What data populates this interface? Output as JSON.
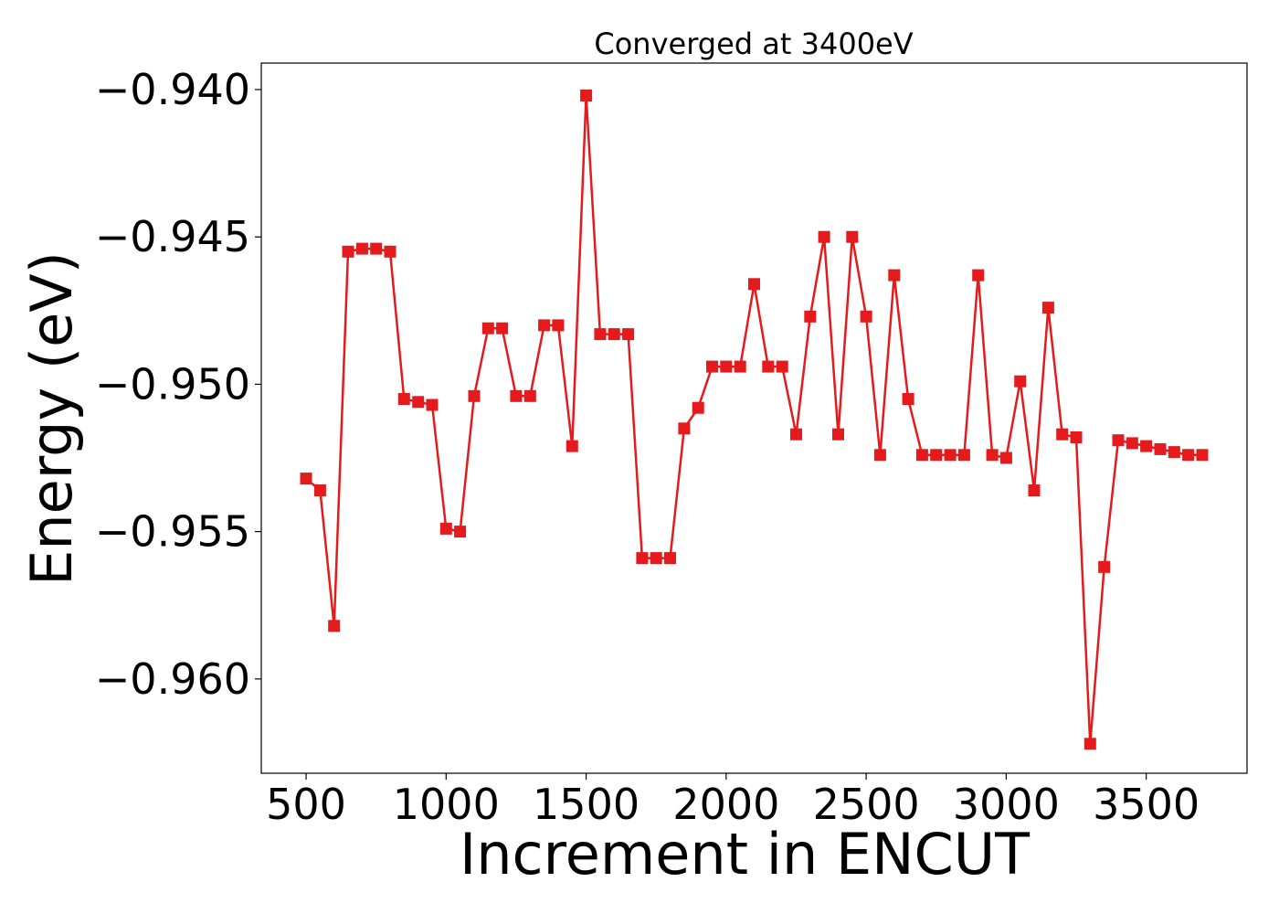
{
  "chart_data": {
    "type": "line",
    "title": "Converged at 3400eV",
    "xlabel": "Increment in ENCUT",
    "ylabel": "Energy (eV)",
    "xlim": [
      340,
      3860
    ],
    "ylim": [
      -0.9632,
      -0.9391
    ],
    "xticks": [
      500,
      1000,
      1500,
      2000,
      2500,
      3000,
      3500
    ],
    "xtick_labels": [
      "500",
      "1000",
      "1500",
      "2000",
      "2500",
      "3000",
      "3500"
    ],
    "yticks": [
      -0.94,
      -0.945,
      -0.95,
      -0.955,
      -0.96
    ],
    "ytick_labels": [
      "−0.940",
      "−0.945",
      "−0.950",
      "−0.955",
      "−0.960"
    ],
    "grid": false,
    "marker": "square",
    "color": "#e41a1c",
    "series": [
      {
        "x": [
          500,
          550,
          600,
          650,
          700,
          750,
          800,
          850,
          900,
          950,
          1000,
          1050,
          1100,
          1150,
          1200,
          1250,
          1300,
          1350,
          1400,
          1450,
          1500,
          1550,
          1600,
          1650,
          1700,
          1750,
          1800,
          1850,
          1900,
          1950,
          2000,
          2050,
          2100,
          2150,
          2200,
          2250,
          2300,
          2350,
          2400,
          2450,
          2500,
          2550,
          2600,
          2650,
          2700,
          2750,
          2800,
          2850,
          2900,
          2950,
          3000,
          3050,
          3100,
          3150,
          3200,
          3250,
          3300,
          3350,
          3400,
          3450,
          3500,
          3550,
          3600,
          3650,
          3700
        ],
        "y": [
          -0.9532,
          -0.9536,
          -0.9582,
          -0.9455,
          -0.9454,
          -0.9454,
          -0.9455,
          -0.9505,
          -0.9506,
          -0.9507,
          -0.9549,
          -0.955,
          -0.9504,
          -0.9481,
          -0.9481,
          -0.9504,
          -0.9504,
          -0.948,
          -0.948,
          -0.9521,
          -0.9402,
          -0.9483,
          -0.9483,
          -0.9483,
          -0.9559,
          -0.9559,
          -0.9559,
          -0.9515,
          -0.9508,
          -0.9494,
          -0.9494,
          -0.9494,
          -0.9466,
          -0.9494,
          -0.9494,
          -0.9517,
          -0.9477,
          -0.945,
          -0.9517,
          -0.945,
          -0.9477,
          -0.9524,
          -0.9463,
          -0.9505,
          -0.9524,
          -0.9524,
          -0.9524,
          -0.9524,
          -0.9463,
          -0.9524,
          -0.9525,
          -0.9499,
          -0.9536,
          -0.9474,
          -0.9517,
          -0.9518,
          -0.9622,
          -0.9562,
          -0.9519,
          -0.952,
          -0.9521,
          -0.9522,
          -0.9523,
          -0.9524,
          -0.9524
        ]
      }
    ]
  }
}
